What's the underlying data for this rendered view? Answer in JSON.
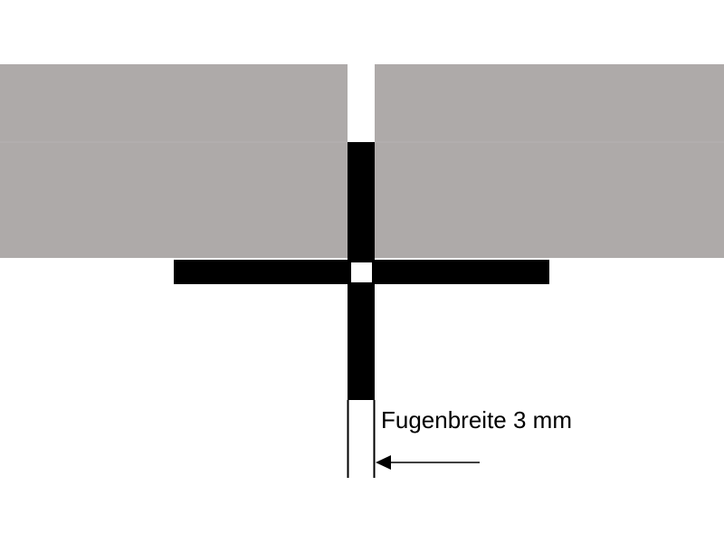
{
  "annotation": {
    "text": "Fugenbreite 3 mm"
  },
  "colors": {
    "tile": "#aeaaa9",
    "spacer": "#000000",
    "background": "#ffffff",
    "outline": "#000000"
  }
}
